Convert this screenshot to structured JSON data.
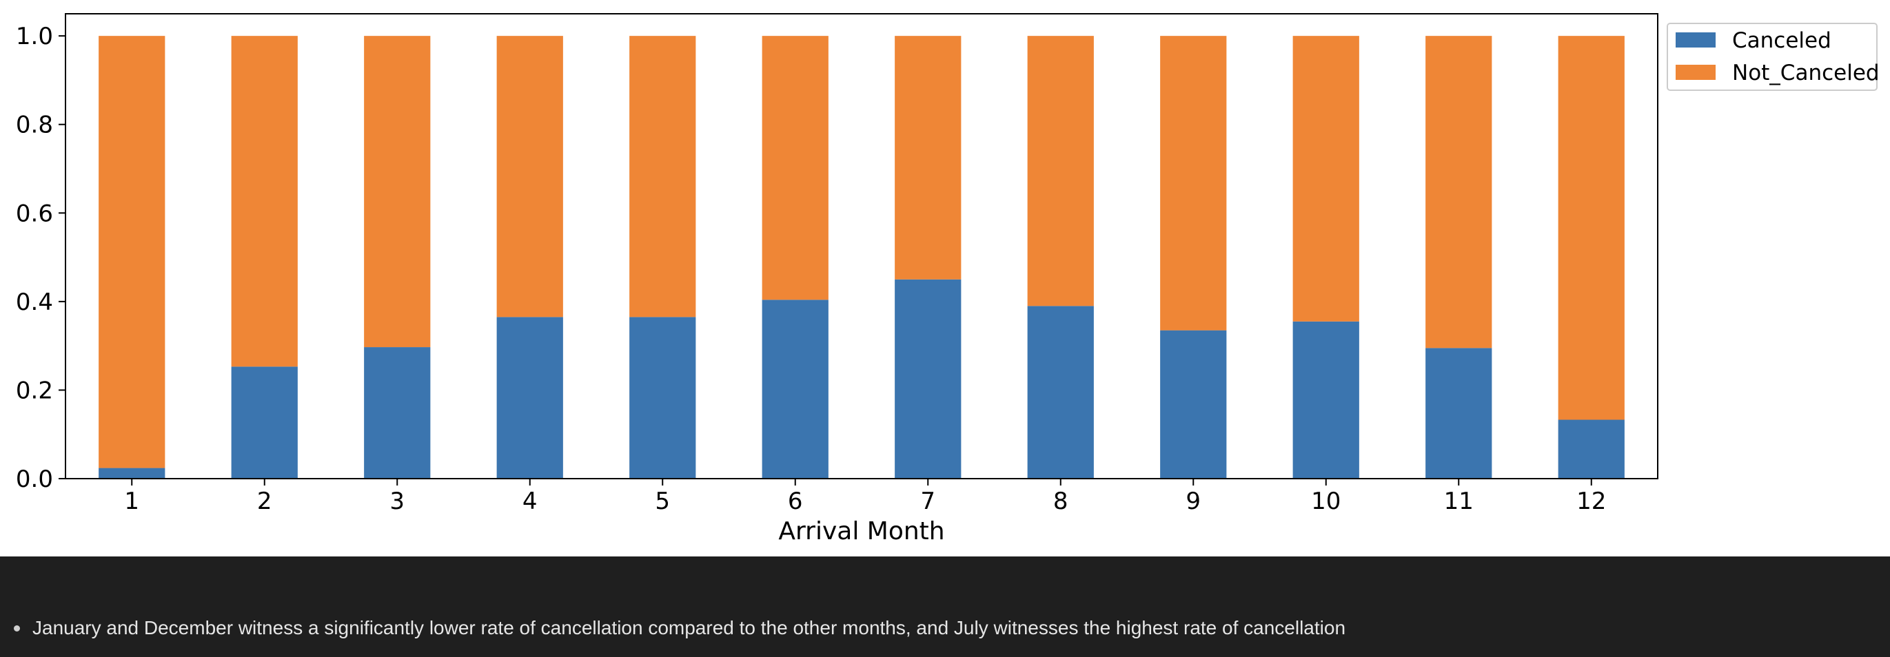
{
  "chart_data": {
    "type": "bar",
    "stacked": true,
    "categories": [
      "1",
      "2",
      "3",
      "4",
      "5",
      "6",
      "7",
      "8",
      "9",
      "10",
      "11",
      "12"
    ],
    "series": [
      {
        "name": "Canceled",
        "color": "#3b75af",
        "values": [
          0.024,
          0.253,
          0.297,
          0.365,
          0.365,
          0.404,
          0.45,
          0.39,
          0.335,
          0.355,
          0.295,
          0.133
        ]
      },
      {
        "name": "Not_Canceled",
        "color": "#ef8636",
        "values": [
          0.976,
          0.747,
          0.703,
          0.635,
          0.635,
          0.596,
          0.55,
          0.61,
          0.665,
          0.645,
          0.705,
          0.867
        ]
      }
    ],
    "xlabel": "Arrival Month",
    "ylabel": "",
    "ylim": [
      0,
      1.05
    ],
    "yticks": [
      "0.0",
      "0.2",
      "0.4",
      "0.6",
      "0.8",
      "1.0"
    ],
    "grid": false,
    "legend": "top-right, outside plot"
  },
  "notes": [
    "January and December witness a significantly lower rate of cancellation compared to the other months, and July witnesses the highest rate of cancellation"
  ]
}
